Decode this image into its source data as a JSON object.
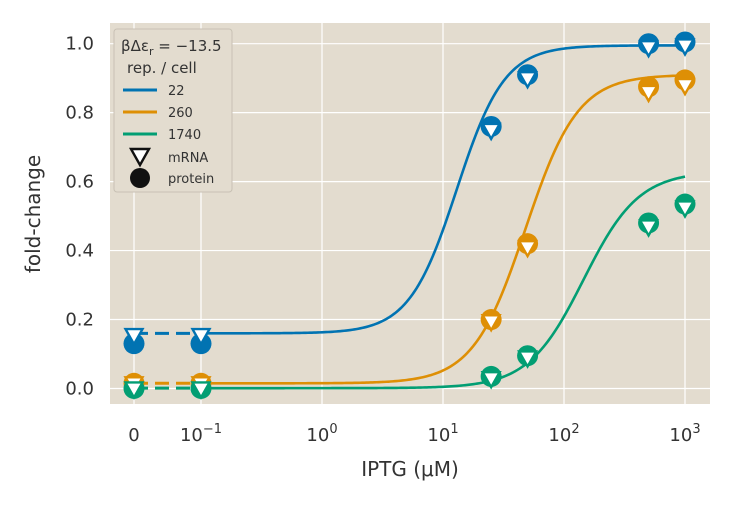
{
  "chart_data": {
    "type": "scatter",
    "xlabel": "IPTG (μM)",
    "ylabel": "fold-change",
    "x_scale": "symlog",
    "x_ticks": [
      {
        "value": 0,
        "label": "0"
      },
      {
        "value": 0.1,
        "label": "10",
        "exp": "−1"
      },
      {
        "value": 1,
        "label": "10",
        "exp": "0"
      },
      {
        "value": 10,
        "label": "10",
        "exp": "1"
      },
      {
        "value": 100,
        "label": "10",
        "exp": "2"
      },
      {
        "value": 1000,
        "label": "10",
        "exp": "3"
      }
    ],
    "y_ticks": [
      0.0,
      0.2,
      0.4,
      0.6,
      0.8,
      1.0
    ],
    "y_tick_labels": [
      "0.0",
      "0.2",
      "0.4",
      "0.6",
      "0.8",
      "1.0"
    ],
    "ylim": [
      -0.045,
      1.06
    ],
    "grid": true,
    "legend": {
      "placement": "top-left",
      "title_line1": "βΔε_r = −13.5",
      "title_line2": "rep. / cell",
      "mrna_label": "mRNA",
      "protein_label": "protein"
    },
    "series": [
      {
        "name": "22",
        "color": "#0173b2",
        "fit": {
          "leak": 0.16,
          "max": 0.995,
          "ec50": 13,
          "n": 2.2
        },
        "mrna": [
          [
            0,
            0.155
          ],
          [
            0.1,
            0.155
          ],
          [
            25,
            0.75
          ],
          [
            50,
            0.9
          ],
          [
            500,
            0.99
          ],
          [
            1000,
            0.995
          ]
        ],
        "protein": [
          [
            0,
            0.13
          ],
          [
            0.1,
            0.13
          ],
          [
            25,
            0.76
          ],
          [
            50,
            0.91
          ],
          [
            500,
            1.0
          ],
          [
            1000,
            1.005
          ]
        ]
      },
      {
        "name": "260",
        "color": "#de8f05",
        "fit": {
          "leak": 0.015,
          "max": 0.91,
          "ec50": 48,
          "n": 2.0
        },
        "mrna": [
          [
            0,
            0.015
          ],
          [
            0.1,
            0.015
          ],
          [
            25,
            0.195
          ],
          [
            50,
            0.41
          ],
          [
            500,
            0.86
          ],
          [
            1000,
            0.88
          ]
        ],
        "protein": [
          [
            0,
            0.015
          ],
          [
            0.1,
            0.015
          ],
          [
            25,
            0.2
          ],
          [
            50,
            0.42
          ],
          [
            500,
            0.875
          ],
          [
            1000,
            0.895
          ]
        ]
      },
      {
        "name": "1740",
        "color": "#029e73",
        "fit": {
          "leak": 0.001,
          "max": 0.63,
          "ec50": 145,
          "n": 1.9
        },
        "mrna": [
          [
            0,
            0.0
          ],
          [
            0.1,
            0.0
          ],
          [
            25,
            0.03
          ],
          [
            50,
            0.09
          ],
          [
            500,
            0.47
          ],
          [
            1000,
            0.525
          ]
        ],
        "protein": [
          [
            0,
            0.0
          ],
          [
            0.1,
            0.0
          ],
          [
            25,
            0.035
          ],
          [
            50,
            0.095
          ],
          [
            500,
            0.48
          ],
          [
            1000,
            0.535
          ]
        ]
      }
    ]
  }
}
